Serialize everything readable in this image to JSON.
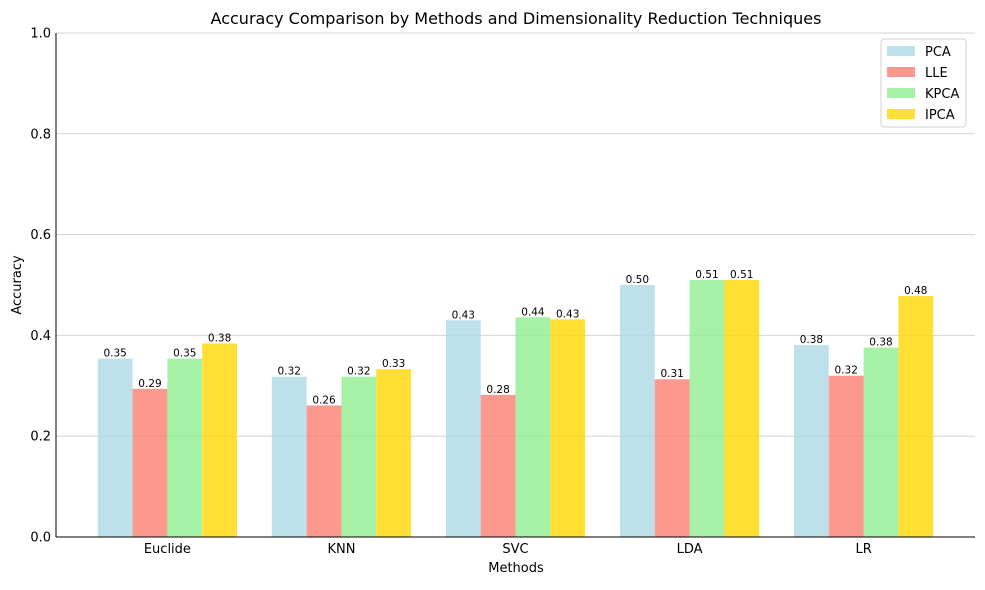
{
  "chart_data": {
    "type": "bar",
    "title": "Accuracy Comparison by Methods and Dimensionality Reduction Techniques",
    "xlabel": "Methods",
    "ylabel": "Accuracy",
    "ylim": [
      0,
      1.0
    ],
    "yticks": [
      "0.0",
      "0.2",
      "0.4",
      "0.6",
      "0.8",
      "1.0"
    ],
    "grid": "horizontal",
    "legend_position": "top-right",
    "categories": [
      "Euclide",
      "KNN",
      "SVC",
      "LDA",
      "LR"
    ],
    "series": [
      {
        "name": "PCA",
        "color": "#add8e6",
        "values": [
          0.354,
          0.318,
          0.43,
          0.5,
          0.381
        ],
        "labels": [
          "0.35",
          "0.32",
          "0.43",
          "0.50",
          "0.38"
        ]
      },
      {
        "name": "LLE",
        "color": "#fa8072",
        "values": [
          0.294,
          0.261,
          0.282,
          0.313,
          0.32
        ],
        "labels": [
          "0.29",
          "0.26",
          "0.28",
          "0.31",
          "0.32"
        ]
      },
      {
        "name": "KPCA",
        "color": "#90ee90",
        "values": [
          0.354,
          0.318,
          0.436,
          0.51,
          0.376
        ],
        "labels": [
          "0.35",
          "0.32",
          "0.44",
          "0.51",
          "0.38"
        ]
      },
      {
        "name": "IPCA",
        "color": "#ffd700",
        "values": [
          0.384,
          0.333,
          0.432,
          0.51,
          0.478
        ],
        "labels": [
          "0.38",
          "0.33",
          "0.43",
          "0.51",
          "0.48"
        ]
      }
    ]
  }
}
